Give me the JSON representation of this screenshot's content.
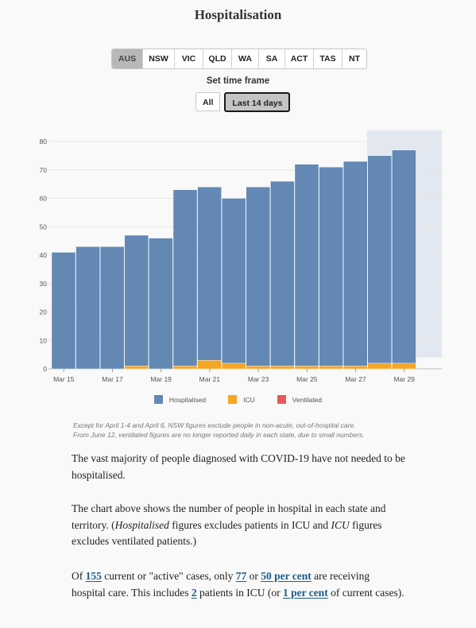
{
  "title": "Hospitalisation",
  "state_tabs": [
    {
      "label": "AUS",
      "active": true
    },
    {
      "label": "NSW",
      "active": false
    },
    {
      "label": "VIC",
      "active": false
    },
    {
      "label": "QLD",
      "active": false
    },
    {
      "label": "WA",
      "active": false
    },
    {
      "label": "SA",
      "active": false
    },
    {
      "label": "ACT",
      "active": false
    },
    {
      "label": "TAS",
      "active": false
    },
    {
      "label": "NT",
      "active": false
    }
  ],
  "time_frame": {
    "label": "Set time frame",
    "options": [
      {
        "label": "All",
        "active": false
      },
      {
        "label": "Last 14 days",
        "active": true
      }
    ]
  },
  "colors": {
    "hospitalised": "#6388b4",
    "icu": "#f5a623",
    "ventilated": "#e8595c",
    "projection_band": "#e3e8f0"
  },
  "chart_data": {
    "type": "bar",
    "stacked": true,
    "categories": [
      "Mar 15",
      "Mar 16",
      "Mar 17",
      "Mar 18",
      "Mar 19",
      "Mar 20",
      "Mar 21",
      "Mar 22",
      "Mar 23",
      "Mar 24",
      "Mar 25",
      "Mar 26",
      "Mar 27",
      "Mar 28",
      "Mar 29"
    ],
    "x_tick_labels": [
      "Mar 15",
      "Mar 17",
      "Mar 19",
      "Mar 21",
      "Mar 23",
      "Mar 25",
      "Mar 27",
      "Mar 29"
    ],
    "series": [
      {
        "name": "Hospitalised",
        "values": [
          41,
          43,
          43,
          46,
          46,
          62,
          61,
          58,
          63,
          65,
          71,
          70,
          72,
          73,
          75
        ]
      },
      {
        "name": "ICU",
        "values": [
          0,
          0,
          0,
          1,
          0,
          1,
          3,
          2,
          1,
          1,
          1,
          1,
          1,
          2,
          2
        ]
      },
      {
        "name": "Ventilated",
        "values": [
          0,
          0,
          0,
          0,
          0,
          0,
          0,
          0,
          0,
          0,
          0,
          0,
          0,
          0,
          0
        ]
      }
    ],
    "totals": [
      41,
      43,
      43,
      47,
      46,
      63,
      64,
      60,
      64,
      66,
      72,
      71,
      73,
      75,
      77
    ],
    "y_ticks": [
      0,
      10,
      20,
      30,
      40,
      50,
      60,
      70,
      80
    ],
    "ylim": [
      0,
      80
    ],
    "grid": true,
    "shaded_region_start": "Mar 28",
    "legend_position": "bottom"
  },
  "notes": [
    "Except for April 1-4 and April 6, NSW figures exclude people in non-acute, out-of-hospital care.",
    "From June 12, ventilated figures are no longer reported daily in each state, due to small numbers."
  ],
  "paragraph1": "The vast majority of people diagnosed with COVID-19 have not needed to be hospitalised.",
  "paragraph2": {
    "part1": "The chart above shows the number of people in hospital in each state and territory. (",
    "em1": "Hospitalised",
    "part2": " figures excludes patients in ICU and ",
    "em2": "ICU",
    "part3": " figures excludes ventilated patients.)"
  },
  "paragraph3": {
    "t1": "Of ",
    "active_cases": "155",
    "t2": " current or \"active\" cases, only ",
    "hospital_count": "77",
    "t3": " or ",
    "hospital_pct": "50 per cent",
    "t4": " are receiving hospital care. This includes ",
    "icu_count": "2",
    "t5": " patients in ICU (or ",
    "icu_pct": "1 per cent",
    "t6": " of current cases)."
  }
}
